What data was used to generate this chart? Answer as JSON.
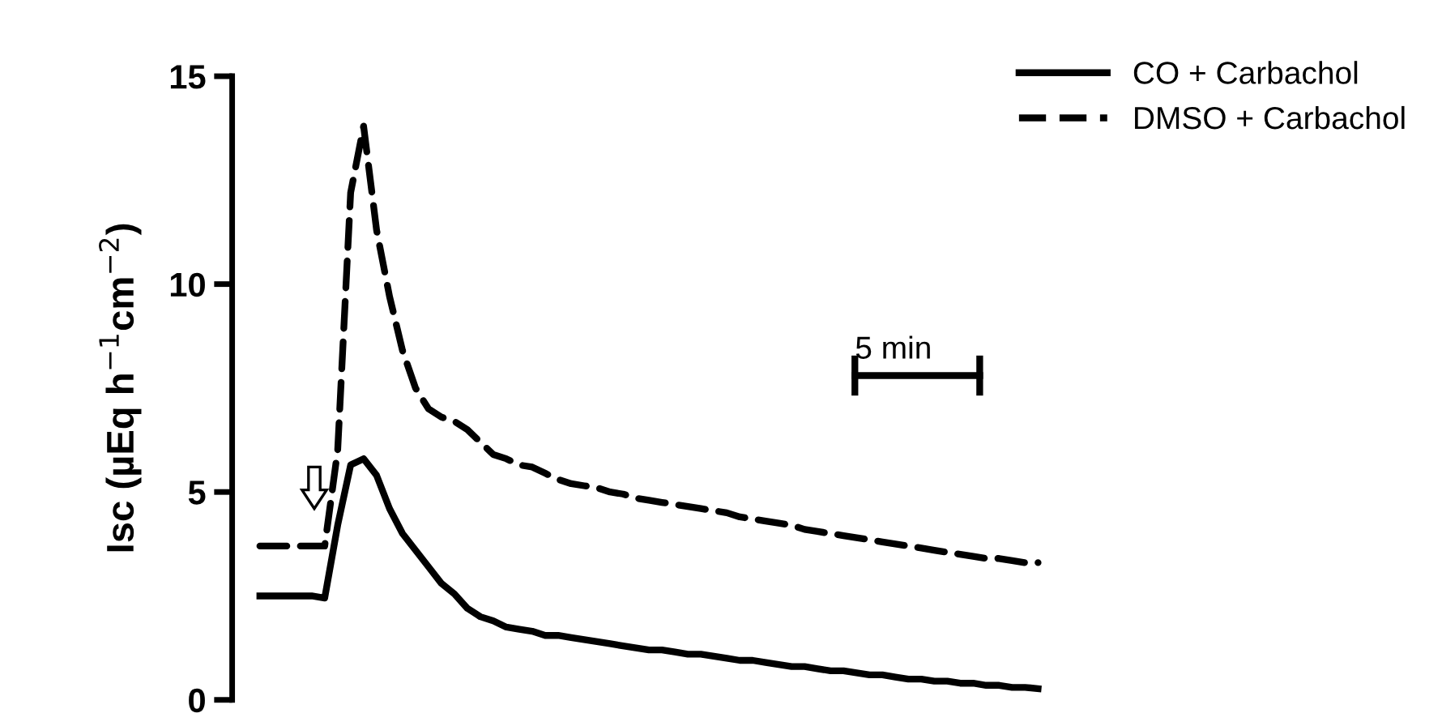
{
  "chart_data": {
    "type": "line",
    "ylabel": "Isc (µEq h$^{−1}$cm$^{−2}$)",
    "categories": [
      null,
      null,
      null,
      null,
      null,
      null,
      null,
      null,
      null,
      null,
      null,
      null,
      null,
      null,
      null,
      null,
      null,
      null,
      null,
      null,
      null,
      null,
      null,
      null,
      null,
      null,
      null,
      null,
      null,
      null,
      null,
      null,
      null,
      null,
      null,
      null,
      null,
      null,
      null,
      null,
      null,
      null,
      null,
      null,
      null,
      null,
      null,
      null,
      null,
      null,
      null,
      null,
      null,
      null,
      null,
      null,
      null,
      null,
      null,
      null,
      null
    ],
    "series": [
      {
        "name": "CO + Carbachol",
        "color": "#000000",
        "line_style": "solid",
        "values": [
          2.5,
          2.5,
          2.5,
          2.5,
          2.5,
          2.45,
          4.2,
          5.65,
          5.8,
          5.4,
          4.6,
          4.0,
          3.6,
          3.2,
          2.8,
          2.55,
          2.2,
          2.0,
          1.9,
          1.75,
          1.7,
          1.65,
          1.55,
          1.55,
          1.5,
          1.45,
          1.4,
          1.35,
          1.3,
          1.25,
          1.2,
          1.2,
          1.15,
          1.1,
          1.1,
          1.05,
          1.0,
          0.95,
          0.95,
          0.9,
          0.85,
          0.8,
          0.8,
          0.75,
          0.7,
          0.7,
          0.65,
          0.6,
          0.6,
          0.55,
          0.5,
          0.5,
          0.45,
          0.45,
          0.4,
          0.4,
          0.35,
          0.35,
          0.3,
          0.3,
          0.27
        ]
      },
      {
        "name": "DMSO + Carbachol",
        "color": "#000000",
        "line_style": "dashed",
        "values": [
          3.7,
          3.7,
          3.7,
          3.7,
          3.7,
          3.7,
          6.0,
          12.2,
          13.8,
          11.3,
          9.7,
          8.4,
          7.5,
          7.0,
          6.8,
          6.7,
          6.5,
          6.2,
          5.9,
          5.8,
          5.65,
          5.6,
          5.45,
          5.3,
          5.2,
          5.15,
          5.1,
          5.0,
          4.95,
          4.85,
          4.8,
          4.75,
          4.7,
          4.65,
          4.6,
          4.55,
          4.5,
          4.4,
          4.35,
          4.3,
          4.25,
          4.2,
          4.1,
          4.05,
          4.0,
          3.95,
          3.9,
          3.85,
          3.8,
          3.75,
          3.7,
          3.65,
          3.6,
          3.55,
          3.5,
          3.45,
          3.4,
          3.4,
          3.35,
          3.3,
          3.3
        ]
      }
    ],
    "ylim": [
      0,
      15
    ],
    "yticks": [
      0,
      5,
      10,
      15
    ],
    "annotations": [
      "5 min"
    ],
    "legend": "top right",
    "grid": false
  }
}
